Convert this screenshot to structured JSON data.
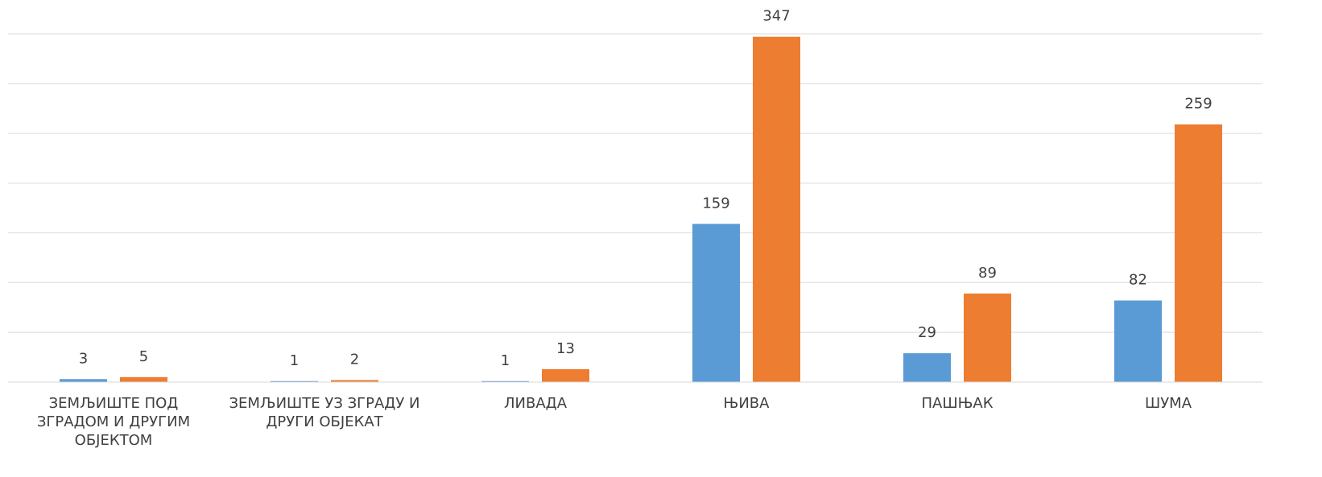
{
  "chart_data": {
    "type": "bar",
    "categories": [
      "ЗЕМЉИШТЕ ПОД ЗГРАДОМ И ДРУГИМ ОБЈЕКТОМ",
      "ЗЕМЉИШТЕ УЗ ЗГРАДУ И ДРУГИ ОБЈЕКАТ",
      "ЛИВАДА",
      "ЊИВА",
      "ПАШЊАК",
      "ШУМА"
    ],
    "series": [
      {
        "color": "#5b9bd5",
        "values": [
          3,
          1,
          1,
          159,
          29,
          82
        ]
      },
      {
        "color": "#ed7d31",
        "values": [
          5,
          2,
          13,
          347,
          89,
          259
        ]
      }
    ],
    "ylim": [
      0,
      350
    ],
    "yticks": [
      0,
      50,
      100,
      150,
      200,
      250,
      300,
      350
    ],
    "grid": true
  }
}
